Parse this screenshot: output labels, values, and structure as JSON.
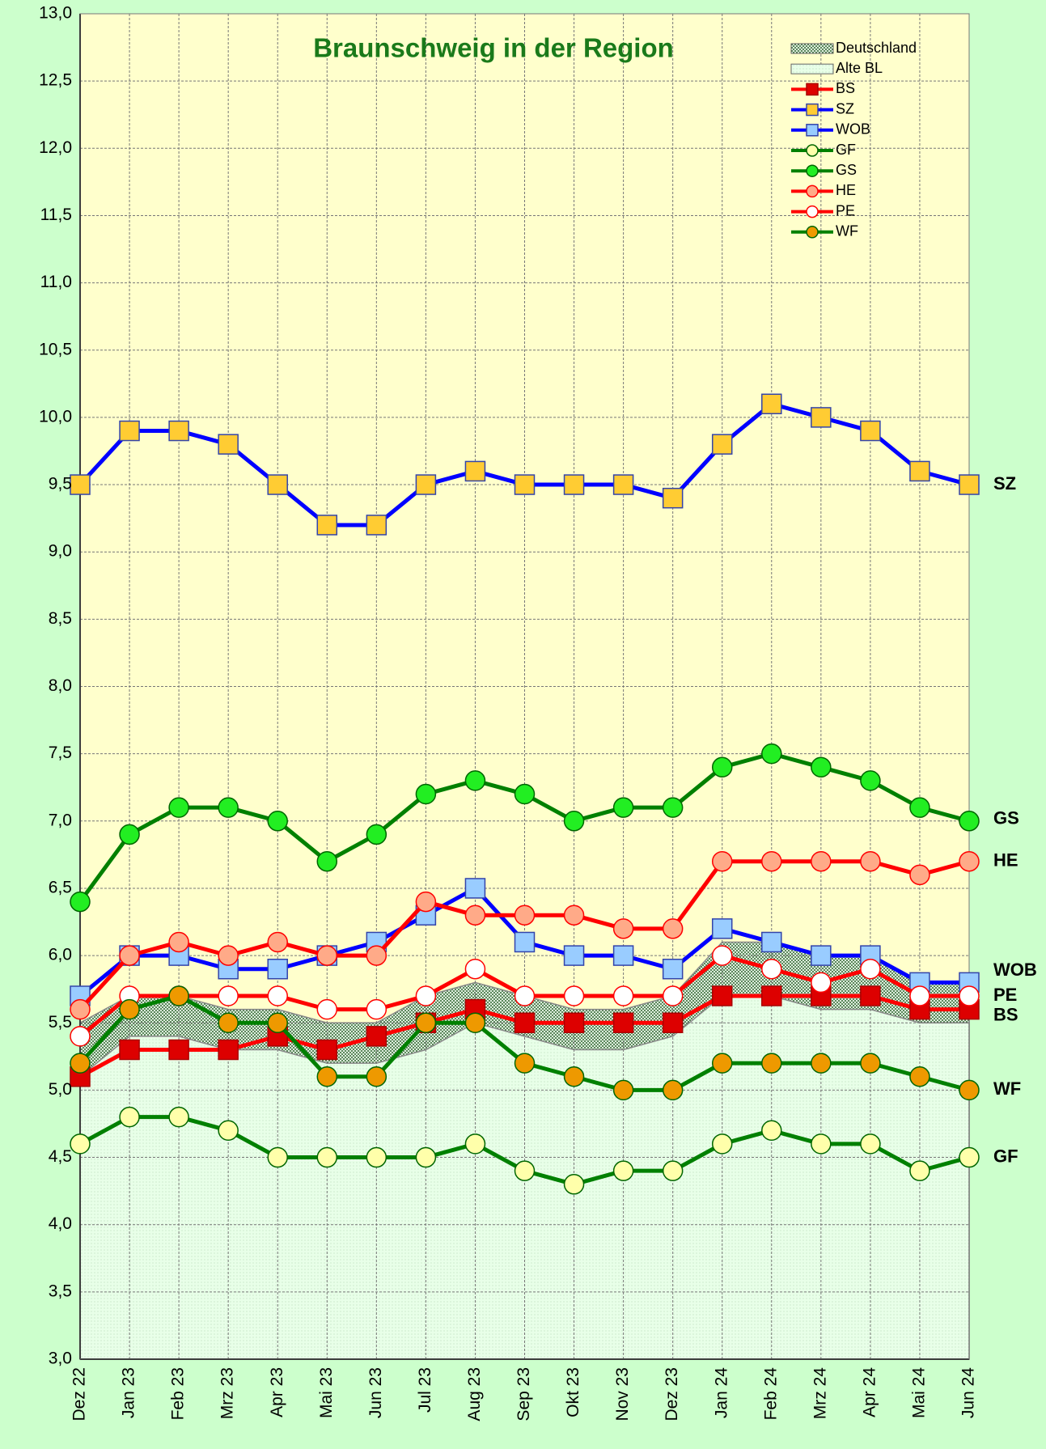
{
  "chart_data": {
    "type": "line",
    "title": "Braunschweig in der Region",
    "categories": [
      "Dez 22",
      "Jan 23",
      "Feb 23",
      "Mrz 23",
      "Apr 23",
      "Mai 23",
      "Jun 23",
      "Jul 23",
      "Aug 23",
      "Sep 23",
      "Okt 23",
      "Nov 23",
      "Dez 23",
      "Jan 24",
      "Feb 24",
      "Mrz 24",
      "Apr 24",
      "Mai 24",
      "Jun 24"
    ],
    "ylim": [
      3.0,
      13.0
    ],
    "yticks": [
      {
        "value": 3.0,
        "label": "3,0"
      },
      {
        "value": 3.5,
        "label": "3,5"
      },
      {
        "value": 4.0,
        "label": "4,0"
      },
      {
        "value": 4.5,
        "label": "4,5"
      },
      {
        "value": 5.0,
        "label": "5,0"
      },
      {
        "value": 5.5,
        "label": "5,5"
      },
      {
        "value": 6.0,
        "label": "6,0"
      },
      {
        "value": 6.5,
        "label": "6,5"
      },
      {
        "value": 7.0,
        "label": "7,0"
      },
      {
        "value": 7.5,
        "label": "7,5"
      },
      {
        "value": 8.0,
        "label": "8,0"
      },
      {
        "value": 8.5,
        "label": "8,5"
      },
      {
        "value": 9.0,
        "label": "9,0"
      },
      {
        "value": 9.5,
        "label": "9,5"
      },
      {
        "value": 10.0,
        "label": "10,0"
      },
      {
        "value": 10.5,
        "label": "10,5"
      },
      {
        "value": 11.0,
        "label": "11,0"
      },
      {
        "value": 11.5,
        "label": "11,5"
      },
      {
        "value": 12.0,
        "label": "12,0"
      },
      {
        "value": 12.5,
        "label": "12,5"
      },
      {
        "value": 13.0,
        "label": "13,0"
      }
    ],
    "grid": true,
    "legend": "upper right",
    "areas": [
      {
        "name": "Deutschland",
        "color": "#669966",
        "values": [
          5.5,
          5.7,
          5.7,
          5.6,
          5.6,
          5.5,
          5.5,
          5.7,
          5.8,
          5.7,
          5.6,
          5.6,
          5.7,
          6.1,
          6.1,
          6.0,
          6.0,
          5.8,
          5.8
        ]
      },
      {
        "name": "Alte BL",
        "color": "#e6ffe6",
        "values": [
          5.1,
          5.4,
          5.4,
          5.3,
          5.3,
          5.2,
          5.2,
          5.3,
          5.5,
          5.4,
          5.3,
          5.3,
          5.4,
          5.7,
          5.7,
          5.6,
          5.6,
          5.5,
          5.5
        ]
      }
    ],
    "series": [
      {
        "name": "BS",
        "color": "#ff0000",
        "marker_color": "#dd0000",
        "marker": "square",
        "values": [
          5.1,
          5.3,
          5.3,
          5.3,
          5.4,
          5.3,
          5.4,
          5.5,
          5.6,
          5.5,
          5.5,
          5.5,
          5.5,
          5.7,
          5.7,
          5.7,
          5.7,
          5.6,
          5.6
        ]
      },
      {
        "name": "SZ",
        "color": "#0000ff",
        "marker_color": "#ffcc33",
        "marker": "square",
        "values": [
          9.5,
          9.9,
          9.9,
          9.8,
          9.5,
          9.2,
          9.2,
          9.5,
          9.6,
          9.5,
          9.5,
          9.5,
          9.4,
          9.8,
          10.1,
          10.0,
          9.9,
          9.6,
          9.5
        ]
      },
      {
        "name": "WOB",
        "color": "#0000ff",
        "marker_color": "#99ccff",
        "marker": "square",
        "values": [
          5.7,
          6.0,
          6.0,
          5.9,
          5.9,
          6.0,
          6.1,
          6.3,
          6.5,
          6.1,
          6.0,
          6.0,
          5.9,
          6.2,
          6.1,
          6.0,
          6.0,
          5.8,
          5.8
        ]
      },
      {
        "name": "GF",
        "color": "#008000",
        "marker_color": "#ffffaa",
        "marker": "circle",
        "values": [
          4.6,
          4.8,
          4.8,
          4.7,
          4.5,
          4.5,
          4.5,
          4.5,
          4.6,
          4.4,
          4.3,
          4.4,
          4.4,
          4.6,
          4.7,
          4.6,
          4.6,
          4.4,
          4.5
        ]
      },
      {
        "name": "GS",
        "color": "#008000",
        "marker_color": "#22ee22",
        "marker": "circle",
        "values": [
          6.4,
          6.9,
          7.1,
          7.1,
          7.0,
          6.7,
          6.9,
          7.2,
          7.3,
          7.2,
          7.0,
          7.1,
          7.1,
          7.4,
          7.5,
          7.4,
          7.3,
          7.1,
          7.0
        ]
      },
      {
        "name": "HE",
        "color": "#ff0000",
        "marker_color": "#ffaa88",
        "marker": "circle",
        "values": [
          5.6,
          6.0,
          6.1,
          6.0,
          6.1,
          6.0,
          6.0,
          6.4,
          6.3,
          6.3,
          6.3,
          6.2,
          6.2,
          6.7,
          6.7,
          6.7,
          6.7,
          6.6,
          6.7
        ]
      },
      {
        "name": "PE",
        "color": "#ff0000",
        "marker_color": "#ffffff",
        "marker": "circle",
        "values": [
          5.4,
          5.7,
          5.7,
          5.7,
          5.7,
          5.6,
          5.6,
          5.7,
          5.9,
          5.7,
          5.7,
          5.7,
          5.7,
          6.0,
          5.9,
          5.8,
          5.9,
          5.7,
          5.7
        ]
      },
      {
        "name": "WF",
        "color": "#008000",
        "marker_color": "#ee9900",
        "marker": "circle",
        "values": [
          5.2,
          5.6,
          5.7,
          5.5,
          5.5,
          5.1,
          5.1,
          5.5,
          5.5,
          5.2,
          5.1,
          5.0,
          5.0,
          5.2,
          5.2,
          5.2,
          5.2,
          5.1,
          5.0
        ]
      }
    ]
  }
}
